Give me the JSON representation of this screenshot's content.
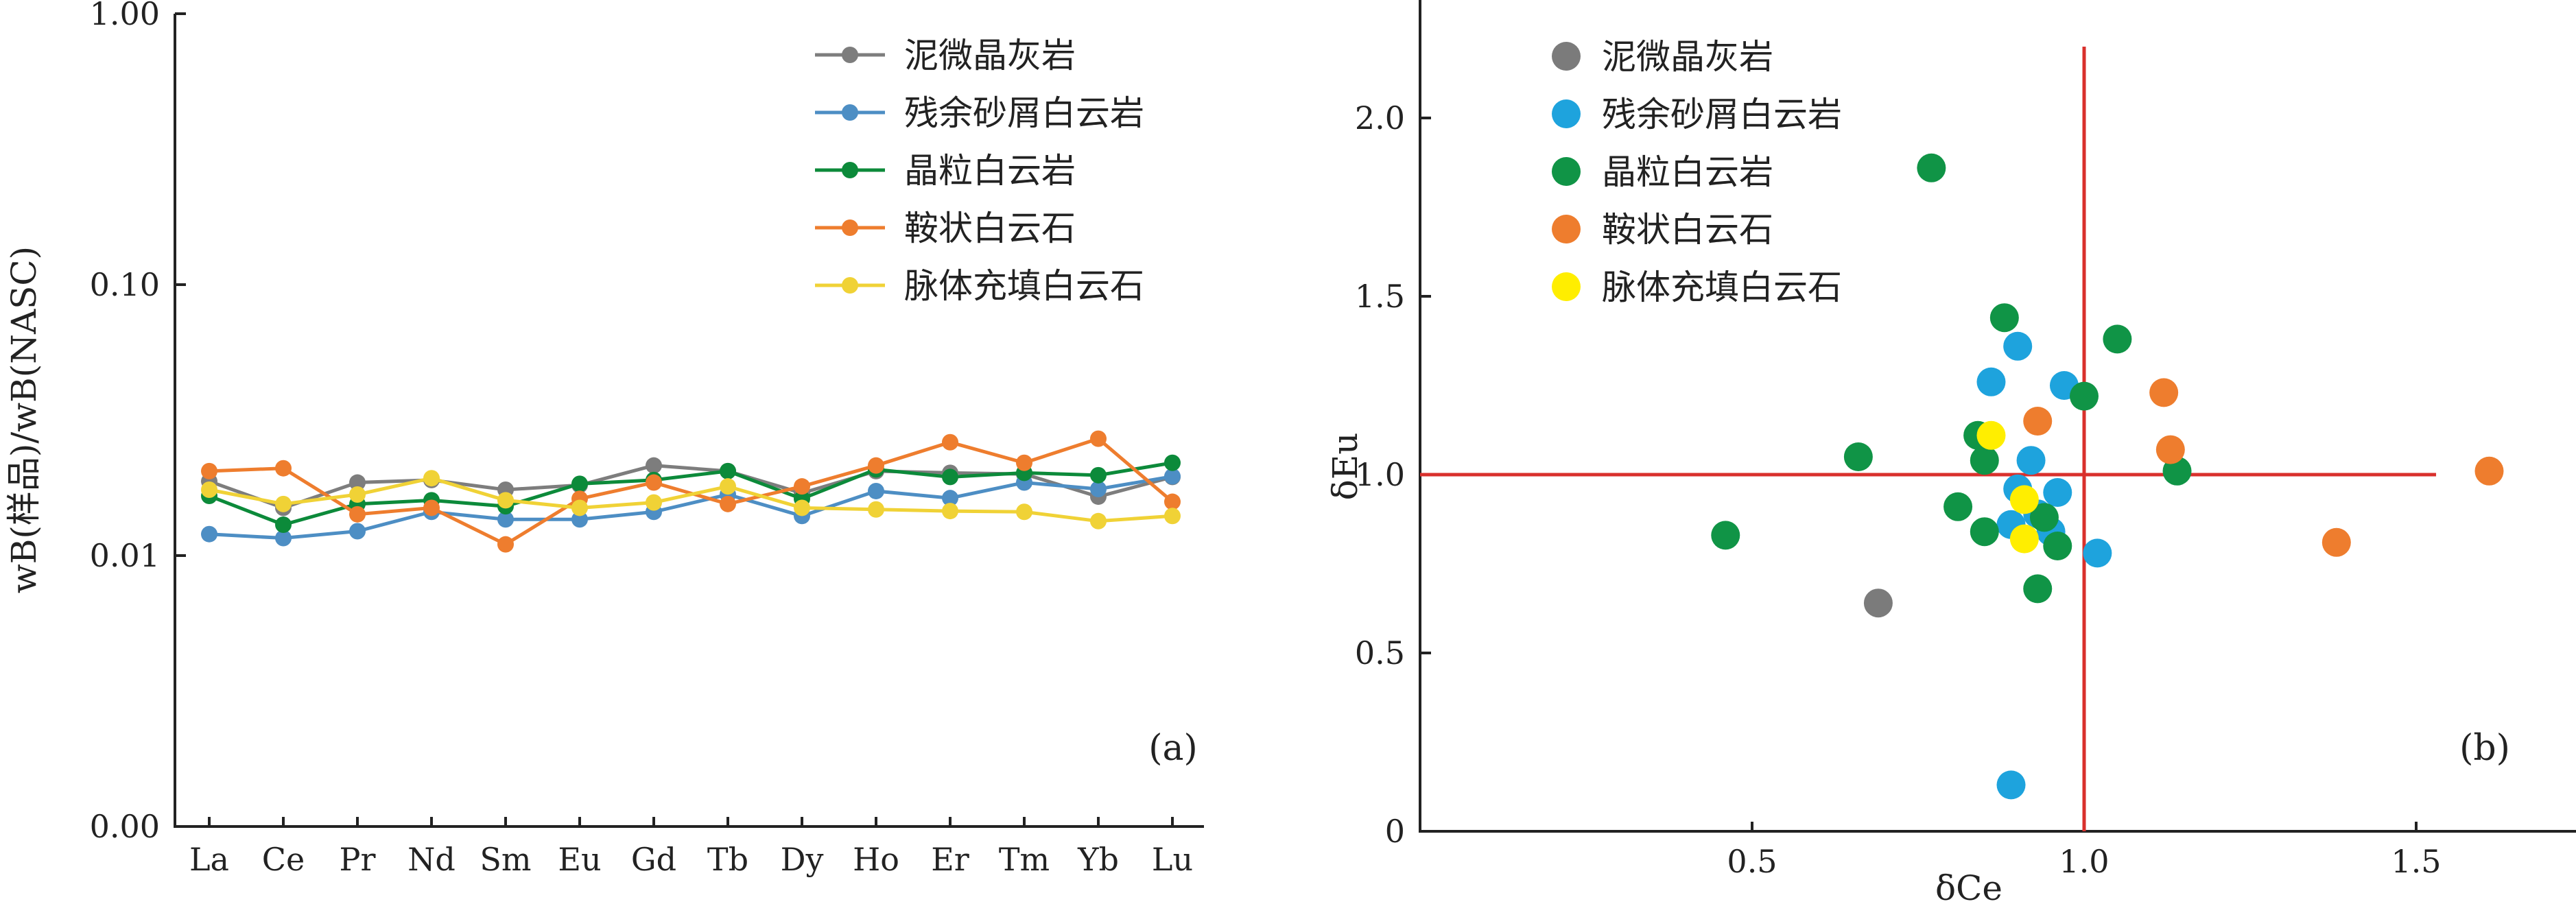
{
  "chart_data": [
    {
      "type": "line",
      "panel_label": "(a)",
      "ylabel": "wB(样品)/wB(NASC)",
      "xlabel": "",
      "y_scale": "log",
      "ylim": [
        0.001,
        1.0
      ],
      "y_ticks": [
        1.0,
        0.1,
        0.01,
        0.001
      ],
      "y_tick_labels": [
        "1.00",
        "0.10",
        "0.01",
        "0.00"
      ],
      "categories": [
        "La",
        "Ce",
        "Pr",
        "Nd",
        "Sm",
        "Eu",
        "Gd",
        "Tb",
        "Dy",
        "Ho",
        "Er",
        "Tm",
        "Yb",
        "Lu"
      ],
      "legend_position": "top-right",
      "series": [
        {
          "name": "泥微晶灰岩",
          "color": "#7d7d7d",
          "values": [
            0.0188,
            0.015,
            0.0186,
            0.019,
            0.0175,
            0.0182,
            0.0215,
            0.0205,
            0.017,
            0.0205,
            0.0202,
            0.02,
            0.0165,
            0.0195
          ]
        },
        {
          "name": "残余砂屑白云岩",
          "color": "#4d8ec4",
          "values": [
            0.012,
            0.0116,
            0.0123,
            0.0145,
            0.0136,
            0.0136,
            0.0145,
            0.0168,
            0.014,
            0.0173,
            0.0163,
            0.0186,
            0.0176,
            0.0196
          ]
        },
        {
          "name": "晶粒白云岩",
          "color": "#0c8a3a",
          "values": [
            0.0166,
            0.013,
            0.0155,
            0.016,
            0.0152,
            0.0184,
            0.019,
            0.0205,
            0.0162,
            0.0208,
            0.0195,
            0.0202,
            0.0198,
            0.022
          ]
        },
        {
          "name": "鞍状白云石",
          "color": "#ee7d2e",
          "values": [
            0.0205,
            0.021,
            0.0142,
            0.015,
            0.011,
            0.0162,
            0.0186,
            0.0155,
            0.018,
            0.0215,
            0.0262,
            0.022,
            0.027,
            0.0158
          ]
        },
        {
          "name": "脉体充填白云石",
          "color": "#f0d236",
          "values": [
            0.0175,
            0.0155,
            0.0168,
            0.0193,
            0.016,
            0.015,
            0.0157,
            0.018,
            0.015,
            0.0148,
            0.0146,
            0.0145,
            0.0134,
            0.014
          ]
        }
      ]
    },
    {
      "type": "scatter",
      "panel_label": "(b)",
      "xlabel": "δCe",
      "ylabel": "δEu",
      "xlim": [
        0.0,
        1.7
      ],
      "ylim": [
        0.0,
        2.25
      ],
      "x_ticks": [
        0.5,
        1.0,
        1.5
      ],
      "x_tick_labels": [
        "0.5",
        "1.0",
        "1.5"
      ],
      "y_ticks": [
        0,
        0.5,
        1.0,
        1.5,
        2.0
      ],
      "y_tick_labels": [
        "0",
        "0.5",
        "1.0",
        "1.5",
        "2.0"
      ],
      "reference_lines": {
        "color": "#d9302c",
        "x": 1.0,
        "x_ymax": 2.2,
        "y": 1.0,
        "y_xmax": 1.53
      },
      "legend_position": "top-left",
      "series": [
        {
          "name": "泥微晶灰岩",
          "color": "#7b7b7b",
          "points": [
            [
              0.69,
              0.64
            ]
          ]
        },
        {
          "name": "残余砂屑白云岩",
          "color": "#1ea3dd",
          "points": [
            [
              0.86,
              1.26
            ],
            [
              0.9,
              1.36
            ],
            [
              0.97,
              1.25
            ],
            [
              0.92,
              1.04
            ],
            [
              0.9,
              0.96
            ],
            [
              0.96,
              0.95
            ],
            [
              0.93,
              0.89
            ],
            [
              0.89,
              0.86
            ],
            [
              0.95,
              0.84
            ],
            [
              1.02,
              0.78
            ],
            [
              0.89,
              0.13
            ]
          ]
        },
        {
          "name": "晶粒白云岩",
          "color": "#109446",
          "points": [
            [
              0.77,
              1.86
            ],
            [
              0.88,
              1.44
            ],
            [
              1.05,
              1.38
            ],
            [
              1.0,
              1.22
            ],
            [
              0.66,
              1.05
            ],
            [
              0.84,
              1.11
            ],
            [
              0.85,
              1.04
            ],
            [
              1.14,
              1.01
            ],
            [
              0.81,
              0.91
            ],
            [
              0.85,
              0.84
            ],
            [
              0.46,
              0.83
            ],
            [
              0.94,
              0.88
            ],
            [
              0.96,
              0.8
            ],
            [
              0.93,
              0.68
            ]
          ]
        },
        {
          "name": "鞍状白云石",
          "color": "#ee7d2e",
          "points": [
            [
              1.12,
              1.23
            ],
            [
              0.93,
              1.15
            ],
            [
              1.13,
              1.07
            ],
            [
              1.61,
              1.01
            ],
            [
              1.38,
              0.81
            ]
          ]
        },
        {
          "name": "脉体充填白云石",
          "color": "#ffee00",
          "points": [
            [
              0.86,
              1.11
            ],
            [
              0.91,
              0.93
            ],
            [
              0.91,
              0.82
            ]
          ]
        }
      ]
    }
  ]
}
